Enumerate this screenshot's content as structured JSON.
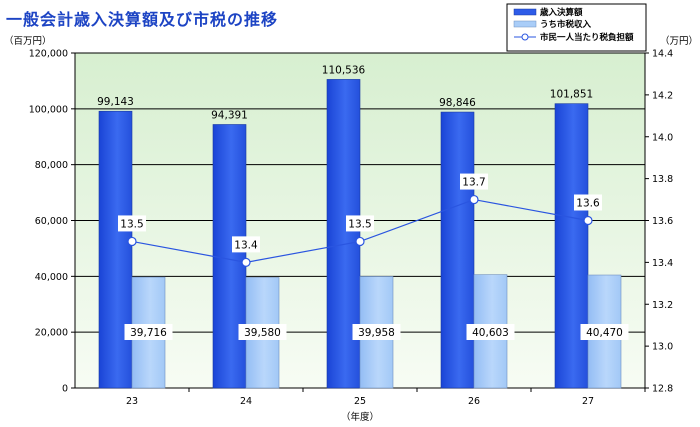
{
  "title": "一般会計歳入決算額及び市税の推移",
  "colors": {
    "bar_main": "#2d5be8",
    "bar_sub": "#a9cdf8",
    "line": "#2a55e0",
    "plot_top": "#d7efd0",
    "plot_bottom": "#f7fcf4"
  },
  "chart_data": {
    "type": "bar",
    "categories": [
      "23",
      "24",
      "25",
      "26",
      "27"
    ],
    "xlabel": "（年度）",
    "y_left_label": "（百万円）",
    "y_right_label": "（万円）",
    "y_left_lim": [
      0,
      120000
    ],
    "y_left_ticks": [
      "0",
      "20,000",
      "40,000",
      "60,000",
      "80,000",
      "100,000",
      "120,000"
    ],
    "y_right_lim": [
      12.8,
      14.4
    ],
    "y_right_ticks": [
      "12.8",
      "13.0",
      "13.2",
      "13.4",
      "13.6",
      "13.8",
      "14.0",
      "14.2",
      "14.4"
    ],
    "grid": true,
    "legend_position": "top-right",
    "series": [
      {
        "name": "歳入決算額",
        "type": "bar",
        "axis": "left",
        "values": [
          99143,
          94391,
          110536,
          98846,
          101851
        ],
        "labels": [
          "99,143",
          "94,391",
          "110,536",
          "98,846",
          "101,851"
        ]
      },
      {
        "name": "うち市税収入",
        "type": "bar",
        "axis": "left",
        "values": [
          39716,
          39580,
          39958,
          40603,
          40470
        ],
        "labels": [
          "39,716",
          "39,580",
          "39,958",
          "40,603",
          "40,470"
        ]
      },
      {
        "name": "市民一人当たり税負担額",
        "type": "line",
        "axis": "right",
        "values": [
          13.5,
          13.4,
          13.5,
          13.7,
          13.6
        ],
        "labels": [
          "13.5",
          "13.4",
          "13.5",
          "13.7",
          "13.6"
        ]
      }
    ]
  }
}
